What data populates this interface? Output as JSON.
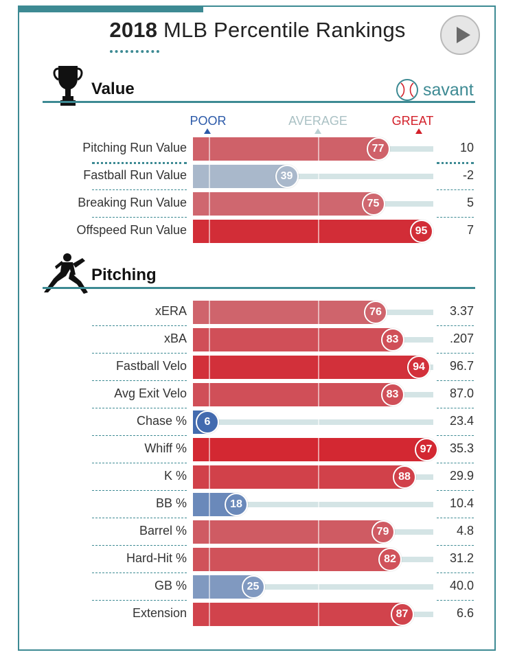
{
  "header": {
    "title_bold": "2018",
    "title_rest": "MLB Percentile Rankings"
  },
  "logo": {
    "text": "savant",
    "icon": "baseball-icon"
  },
  "columns": {
    "poor": "POOR",
    "average": "AVERAGE",
    "great": "GREAT"
  },
  "colors": {
    "accent": "#3d8a93",
    "poor": "#2c5aa9",
    "average": "#b9d0d3",
    "great": "#d3202a"
  },
  "chart_data": [
    {
      "type": "bar",
      "title": "Value",
      "icon": "trophy-icon",
      "categories": [
        "Pitching Run Value",
        "Fastball Run Value",
        "Breaking Run Value",
        "Offspeed Run Value"
      ],
      "percentiles": [
        77,
        39,
        75,
        95
      ],
      "values": [
        "10",
        "-2",
        "5",
        "7"
      ],
      "xlim": [
        0,
        100
      ]
    },
    {
      "type": "bar",
      "title": "Pitching",
      "icon": "pitcher-icon",
      "categories": [
        "xERA",
        "xBA",
        "Fastball Velo",
        "Avg Exit Velo",
        "Chase %",
        "Whiff %",
        "K %",
        "BB %",
        "Barrel %",
        "Hard-Hit %",
        "GB %",
        "Extension"
      ],
      "percentiles": [
        76,
        83,
        94,
        83,
        6,
        97,
        88,
        18,
        79,
        82,
        25,
        87
      ],
      "values": [
        "3.37",
        ".207",
        "96.7",
        "87.0",
        "23.4",
        "35.3",
        "29.9",
        "10.4",
        "4.8",
        "31.2",
        "40.0",
        "6.6"
      ],
      "xlim": [
        0,
        100
      ]
    }
  ]
}
